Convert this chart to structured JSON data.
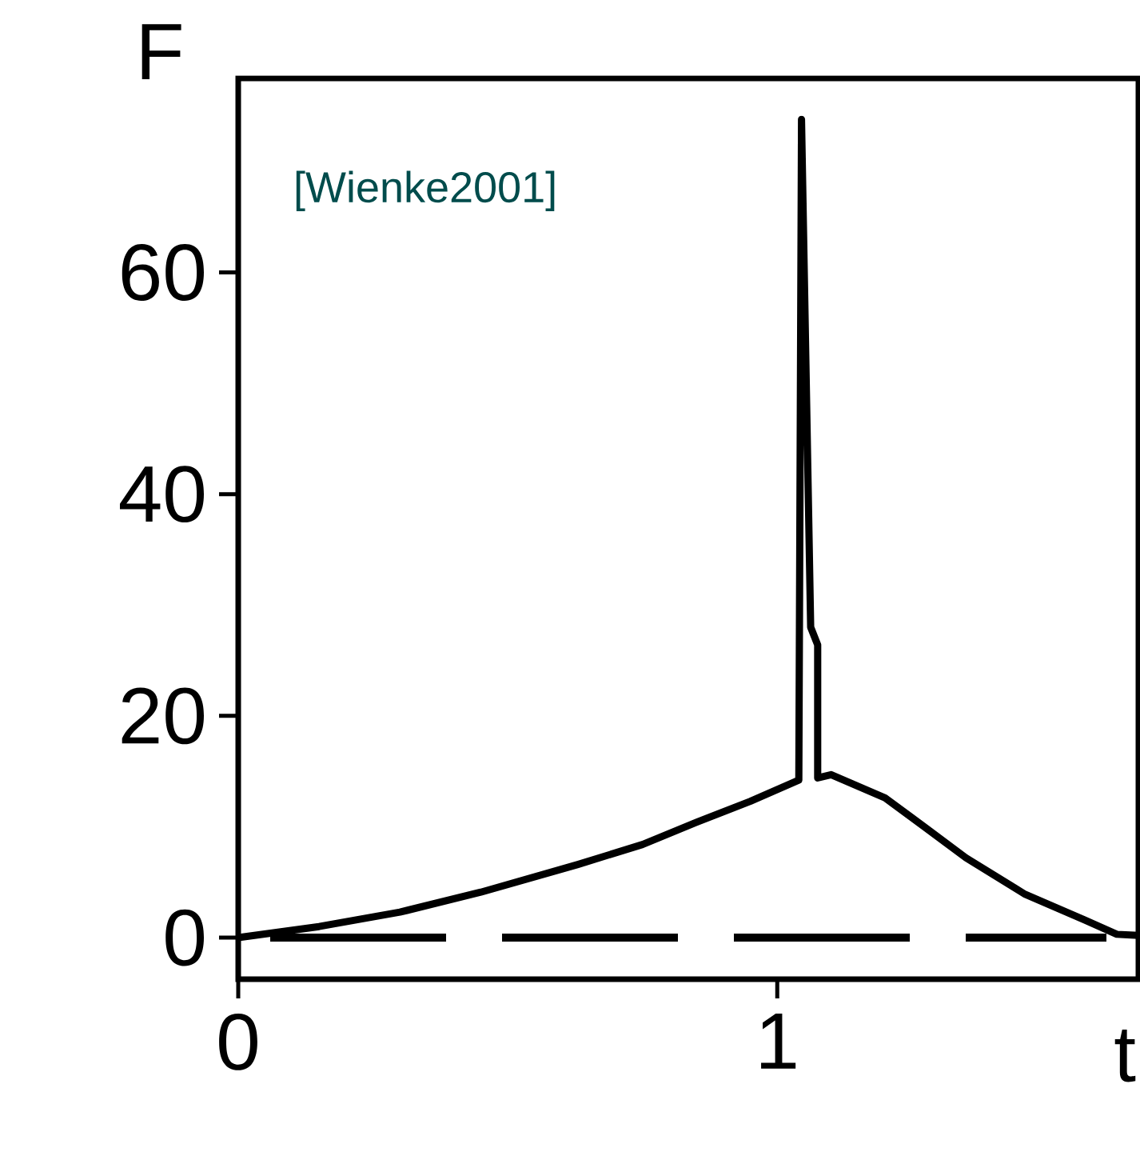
{
  "chart_data": {
    "type": "line",
    "xlabel": "t",
    "ylabel": "F",
    "annotations": [
      "[Wienke2001]"
    ],
    "series": [
      {
        "color": "#000000",
        "x": [
          0,
          0.15,
          0.3,
          0.45,
          0.63,
          0.75,
          0.85,
          0.95,
          1.04,
          1.045,
          1.062,
          1.075,
          1.075,
          1.1,
          1.2,
          1.27,
          1.35,
          1.46,
          1.57,
          1.63,
          1.67
        ],
        "values": [
          0,
          1,
          2.3,
          4.1,
          6.6,
          8.4,
          10.4,
          12.3,
          14.2,
          73.8,
          28,
          26.4,
          14.4,
          14.7,
          12.6,
          10.1,
          7.2,
          3.9,
          1.6,
          0.3,
          0.2
        ]
      }
    ],
    "xlim": [
      0,
      1.67
    ],
    "ylim": [
      -3.75,
      77.5
    ],
    "xticks": [
      0,
      1
    ],
    "yticks": [
      0,
      20,
      40,
      60
    ],
    "ref_lines": [
      {
        "axis": "y",
        "value": 0,
        "color": "#000000",
        "line_style": "dashed"
      }
    ],
    "grid": false,
    "line_style": "solid",
    "marker": "none"
  }
}
